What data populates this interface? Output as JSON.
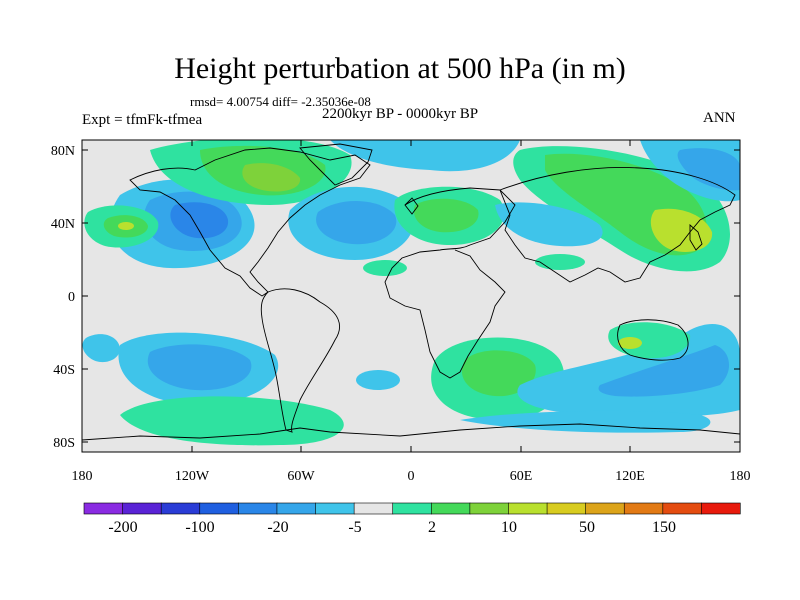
{
  "header": {
    "title": "Height perturbation at 500 hPa (in m)",
    "rmsd_line": "rmsd= 4.00754 diff= -2.35036e-08",
    "period": "2200kyr BP - 0000kyr BP",
    "experiment": "Expt = tfmFk-tfmea",
    "season": "ANN"
  },
  "axes": {
    "lat_labels": [
      "80N",
      "40N",
      "0",
      "40S",
      "80S"
    ],
    "lon_labels": [
      "180",
      "120W",
      "60W",
      "0",
      "60E",
      "120E",
      "180"
    ]
  },
  "colorbar": {
    "colors": [
      "#8a2be2",
      "#5a23d6",
      "#2a3cd6",
      "#1f5fe0",
      "#2a86e8",
      "#35a6ea",
      "#3fc4ea",
      "#e6e6e6",
      "#2fe2a0",
      "#44d95a",
      "#7ed23a",
      "#b9e02e",
      "#d8cc20",
      "#dca41a",
      "#e27a14",
      "#e44c10",
      "#e81a0c"
    ],
    "labels": [
      "-200",
      "-100",
      "-20",
      "-5",
      "2",
      "10",
      "50",
      "150"
    ]
  },
  "palette": {
    "land": "#e6e6e6",
    "blue_light": "#3fc4ea",
    "blue_mid": "#35a6ea",
    "blue_dark": "#2a86e8",
    "green_light": "#2fe2a0",
    "green_mid": "#44d95a",
    "yellow_green": "#b9e02e"
  }
}
